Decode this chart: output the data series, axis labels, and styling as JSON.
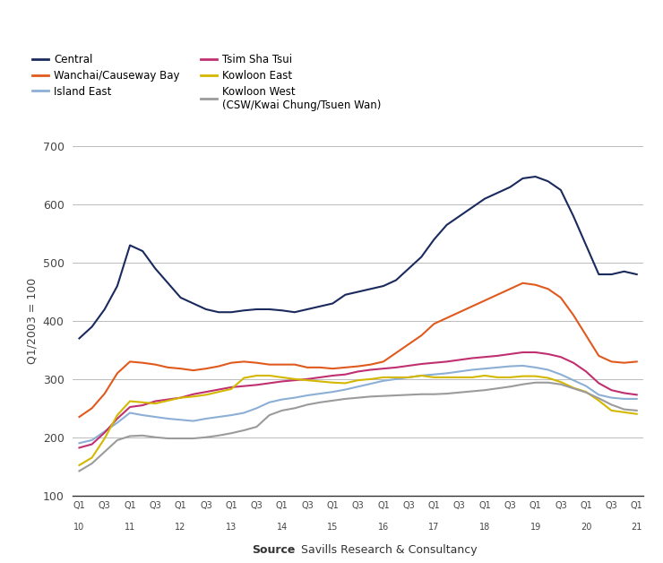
{
  "series": {
    "Central": {
      "color": "#1b2a5e",
      "values": [
        370,
        390,
        420,
        460,
        530,
        520,
        490,
        465,
        440,
        430,
        420,
        415,
        415,
        418,
        420,
        420,
        418,
        415,
        420,
        425,
        430,
        445,
        450,
        455,
        460,
        470,
        490,
        510,
        540,
        565,
        580,
        595,
        610,
        620,
        630,
        645,
        648,
        640,
        625,
        580,
        530,
        480,
        480,
        485,
        480
      ]
    },
    "Wanchai/Causeway Bay": {
      "color": "#e05a1e",
      "values": [
        235,
        250,
        275,
        310,
        330,
        328,
        325,
        320,
        318,
        315,
        318,
        322,
        328,
        330,
        328,
        325,
        325,
        325,
        320,
        320,
        318,
        320,
        322,
        325,
        330,
        345,
        360,
        375,
        395,
        405,
        415,
        425,
        435,
        445,
        455,
        465,
        462,
        455,
        440,
        410,
        375,
        340,
        330,
        328,
        330
      ]
    },
    "Island East": {
      "color": "#8cafd6",
      "values": [
        190,
        195,
        210,
        225,
        242,
        238,
        235,
        232,
        230,
        228,
        232,
        235,
        238,
        242,
        250,
        260,
        265,
        268,
        272,
        275,
        278,
        282,
        287,
        292,
        297,
        300,
        303,
        306,
        308,
        310,
        313,
        316,
        318,
        320,
        322,
        323,
        320,
        316,
        308,
        298,
        288,
        273,
        268,
        266,
        266
      ]
    },
    "Tsim Sha Tsui": {
      "color": "#c03070",
      "values": [
        182,
        188,
        208,
        232,
        252,
        255,
        262,
        265,
        268,
        274,
        278,
        282,
        286,
        288,
        290,
        293,
        296,
        298,
        300,
        303,
        306,
        308,
        313,
        316,
        318,
        320,
        323,
        326,
        328,
        330,
        333,
        336,
        338,
        340,
        343,
        346,
        346,
        343,
        338,
        328,
        313,
        293,
        281,
        276,
        273
      ]
    },
    "Kowloon East": {
      "color": "#d4b800",
      "values": [
        152,
        165,
        198,
        238,
        262,
        260,
        258,
        263,
        268,
        270,
        273,
        278,
        283,
        302,
        306,
        306,
        303,
        300,
        298,
        296,
        294,
        293,
        298,
        300,
        303,
        303,
        303,
        306,
        303,
        303,
        303,
        303,
        306,
        303,
        303,
        305,
        305,
        302,
        295,
        285,
        278,
        263,
        246,
        243,
        240
      ]
    },
    "Kowloon West": {
      "color": "#9b9b9b",
      "values": [
        142,
        155,
        175,
        195,
        202,
        203,
        200,
        198,
        198,
        198,
        200,
        203,
        207,
        212,
        218,
        238,
        246,
        250,
        256,
        260,
        263,
        266,
        268,
        270,
        271,
        272,
        273,
        274,
        274,
        275,
        277,
        279,
        281,
        284,
        287,
        291,
        294,
        294,
        291,
        284,
        277,
        267,
        256,
        248,
        246
      ]
    }
  },
  "legend_entries": [
    [
      "Central",
      "Wanchai/Causeway Bay"
    ],
    [
      "Island East",
      "Tsim Sha Tsui"
    ],
    [
      "Kowloon East",
      "Kowloon West\n(CSW/Kwai Chung/Tsuen Wan)"
    ]
  ],
  "legend_keys": [
    "Central",
    "Wanchai/Causeway Bay",
    "Island East",
    "Tsim Sha Tsui",
    "Kowloon East",
    "Kowloon West"
  ],
  "legend_labels": [
    "Central",
    "Wanchai/Causeway Bay",
    "Island East",
    "Tsim Sha Tsui",
    "Kowloon East",
    "Kowloon West\n(CSW/Kwai Chung/Tsuen Wan)"
  ],
  "n_points": 45,
  "ylim": [
    100,
    700
  ],
  "yticks": [
    100,
    200,
    300,
    400,
    500,
    600,
    700
  ],
  "ylabel": "Q1/2003 = 100",
  "grid_color": "#bbbbbb",
  "bg_color": "#ffffff",
  "source_bold": "Source",
  "source_normal": " Savills Research & Consultancy"
}
